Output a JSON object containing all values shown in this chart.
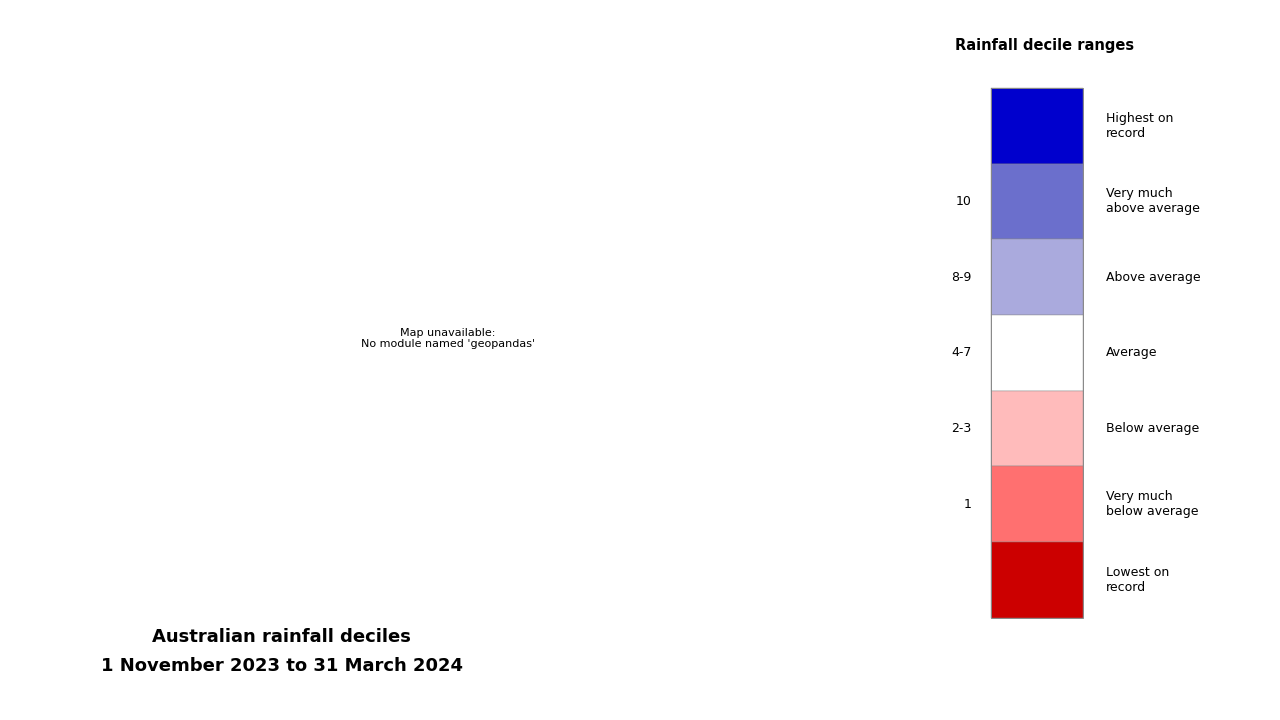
{
  "title_line1": "Australian rainfall deciles",
  "title_line2": "1 November 2023 to 31 March 2024",
  "legend_title": "Rainfall decile ranges",
  "legend_labels": [
    "Highest on\nrecord",
    "Very much\nabove average",
    "Above average",
    "Average",
    "Below average",
    "Very much\nbelow average",
    "Lowest on\nrecord"
  ],
  "legend_ticks": [
    "10",
    "8-9",
    "4-7",
    "2-3",
    "1"
  ],
  "legend_colors": [
    "#0000CD",
    "#6B6FCC",
    "#AAAADD",
    "#FFFFFF",
    "#FFBBBB",
    "#FF7070",
    "#CC0000"
  ],
  "background_color": "#FFFFFF",
  "map_extent": [
    112,
    154,
    -44,
    -10
  ],
  "fig_width": 12.8,
  "fig_height": 7.2
}
